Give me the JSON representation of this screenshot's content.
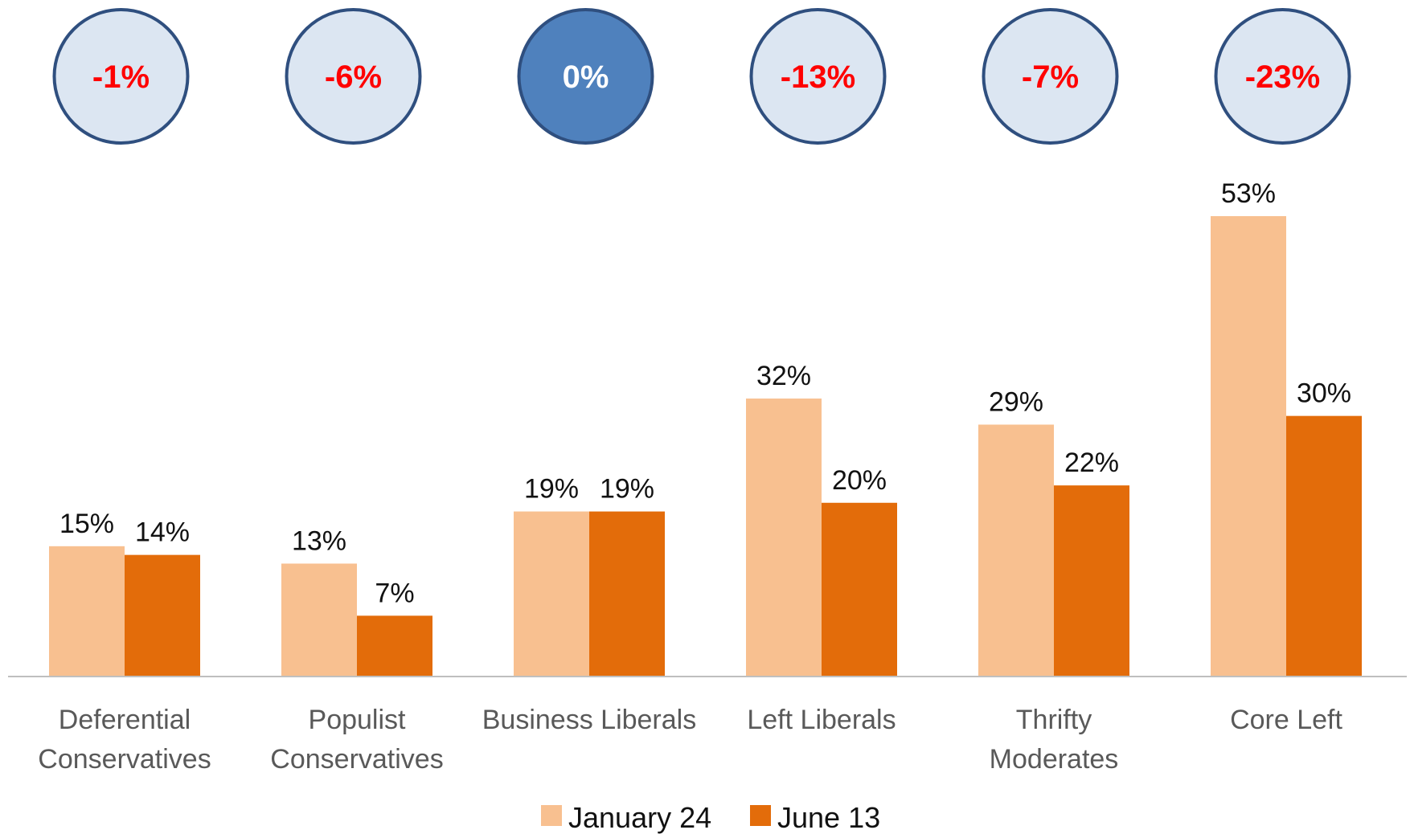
{
  "chart_data": {
    "type": "bar",
    "categories": [
      [
        "Deferential",
        "Conservatives"
      ],
      [
        "Populist",
        "Conservatives"
      ],
      [
        "Business Liberals"
      ],
      [
        "Left Liberals"
      ],
      [
        "Thrifty",
        "Moderates"
      ],
      [
        "Core Left"
      ]
    ],
    "series": [
      {
        "name": "January 24",
        "values": [
          15,
          13,
          19,
          32,
          29,
          53
        ],
        "color": "#F8C090"
      },
      {
        "name": "June 13",
        "values": [
          14,
          7,
          19,
          20,
          22,
          30
        ],
        "color": "#E36C0A"
      }
    ],
    "value_labels": [
      [
        "15%",
        "13%",
        "19%",
        "32%",
        "29%",
        "53%"
      ],
      [
        "14%",
        "7%",
        "19%",
        "20%",
        "22%",
        "30%"
      ]
    ],
    "changes": [
      "-1%",
      "-6%",
      "0%",
      "-13%",
      "-7%",
      "-23%"
    ],
    "change_style": {
      "bubble_fill": "#DCE6F2",
      "bubble_fill_highlight": "#4F81BD",
      "bubble_stroke": "#2F4F7F",
      "text_color_negative": "#FF0000",
      "text_color_highlight": "#FFFFFF",
      "highlighted_index": 2
    },
    "ylim": [
      0,
      53
    ],
    "grid": false,
    "legend_position": "bottom-center",
    "title": "",
    "xlabel": "",
    "ylabel": ""
  }
}
